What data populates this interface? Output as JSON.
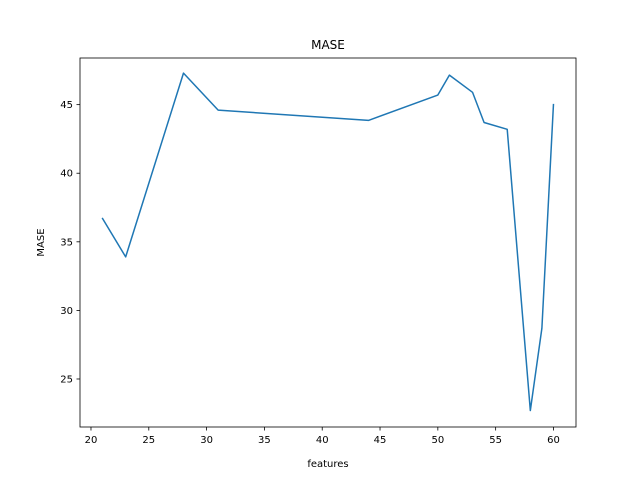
{
  "chart_data": {
    "type": "line",
    "title": "MASE",
    "xlabel": "features",
    "ylabel": "MASE",
    "xlim": [
      19.05,
      61.95
    ],
    "ylim": [
      21.5,
      48.4
    ],
    "xticks": [
      20,
      25,
      30,
      35,
      40,
      45,
      50,
      55,
      60
    ],
    "xtick_labels": [
      "20",
      "25",
      "30",
      "35",
      "40",
      "45",
      "50",
      "55",
      "60"
    ],
    "yticks": [
      25,
      30,
      35,
      40,
      45
    ],
    "ytick_labels": [
      "25",
      "30",
      "35",
      "40",
      "45"
    ],
    "grid": false,
    "series": [
      {
        "color": "#1f77b4",
        "x": [
          21,
          23,
          28,
          31,
          44,
          50,
          51,
          53,
          54,
          56,
          58,
          59,
          60
        ],
        "y": [
          36.7,
          33.9,
          47.3,
          44.6,
          43.85,
          45.7,
          47.15,
          45.9,
          43.7,
          43.2,
          22.7,
          28.7,
          45.0
        ]
      }
    ]
  }
}
